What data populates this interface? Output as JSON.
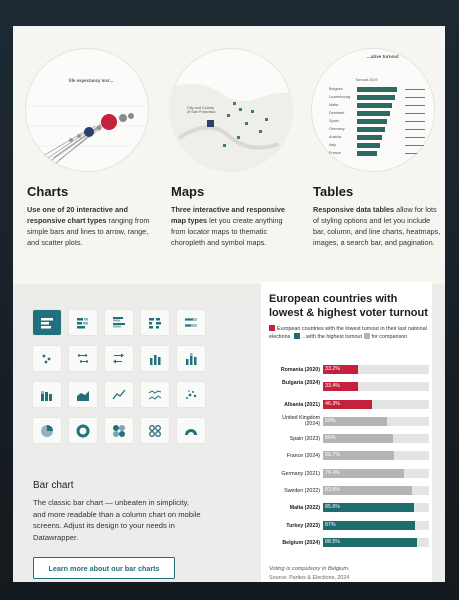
{
  "sections": {
    "charts": {
      "title": "Charts",
      "desc_bold": "Use one of 20 interactive and responsive chart types",
      "desc_rest": " ranging from simple bars and lines to arrow, range, and scatter plots.",
      "preview_title": "life expectancy incr..."
    },
    "maps": {
      "title": "Maps",
      "desc_bold": "Three interactive and responsive map types",
      "desc_rest": " let you create anything from locator maps to thematic choropleth and symbol maps.",
      "preview_label": "City and County of San Francisco"
    },
    "tables": {
      "title": "Tables",
      "desc_bold": "Responsive data tables",
      "desc_rest": " allow for lots of styling options and let you include bar, column, and line charts, heatmaps, images, a search bar, and pagination.",
      "preview_title": "...ative turnout",
      "preview_header": "Turnout 2019",
      "preview_rows": [
        "Belgium",
        "Luxembourg",
        "Malta",
        "Denmark",
        "Spain",
        "Germany",
        "Austria",
        "Italy",
        "France"
      ]
    }
  },
  "icons": [
    "bar-chart-icon",
    "stacked-bar-icon",
    "grouped-bar-icon",
    "split-bar-icon",
    "bullet-bar-icon",
    "dot-plot-icon",
    "range-plot-icon",
    "arrow-plot-icon",
    "column-chart-icon",
    "stacked-column-icon",
    "stacked-area-icon",
    "area-chart-icon",
    "line-chart-icon",
    "multiple-lines-icon",
    "scatter-plot-icon",
    "pie-chart-icon",
    "donut-chart-icon",
    "multiple-pies-icon",
    "multiple-donuts-icon",
    "election-donut-icon"
  ],
  "bar_chart": {
    "title": "Bar chart",
    "desc": "The classic bar chart — unbeaten in simplicity, and more readable than a column chart on mobile screens. Adjust its design to your needs in Datawrapper.",
    "cta": "Learn more about our bar charts"
  },
  "chart_data": {
    "type": "bar",
    "title": "European countries with lowest & highest voter turnout",
    "legend": [
      {
        "label": "European countries with the lowest turnout in their last national elections",
        "color": "#c4213d"
      },
      {
        "label": "...with the highest turnout",
        "color": "#1d6c6e"
      },
      {
        "label": "for comparison",
        "color": "#b4b4b4"
      }
    ],
    "categories": [
      "Romania (2020)",
      "Bulgaria (2024)",
      "Albania (2021)",
      "United Kingdom (2024)",
      "Spain (2023)",
      "France (2024)",
      "Germany (2021)",
      "Sweden (2022)",
      "Malta (2022)",
      "Turkey (2023)",
      "Belgium (2024)"
    ],
    "values": [
      33.2,
      33.4,
      46.3,
      60,
      66,
      66.7,
      76.4,
      83.8,
      85.6,
      87,
      88.5
    ],
    "labels": [
      "33.2%",
      "33.4%",
      "46.3%",
      "60%",
      "66%",
      "66.7%",
      "76.4%",
      "83.8%",
      "85.6%",
      "87%",
      "88.5%"
    ],
    "groups": [
      "low",
      "low",
      "low",
      "comparison",
      "comparison",
      "comparison",
      "comparison",
      "comparison",
      "high",
      "high",
      "high"
    ],
    "xlim": [
      0,
      100
    ],
    "note": "Voting is compulsory in Belgium.",
    "source": "Source: Parties & Elections, 2024"
  },
  "colors": {
    "low": "#c4213d",
    "high": "#1d6c6e",
    "comparison": "#b4b4b4",
    "accent": "#20707e"
  }
}
